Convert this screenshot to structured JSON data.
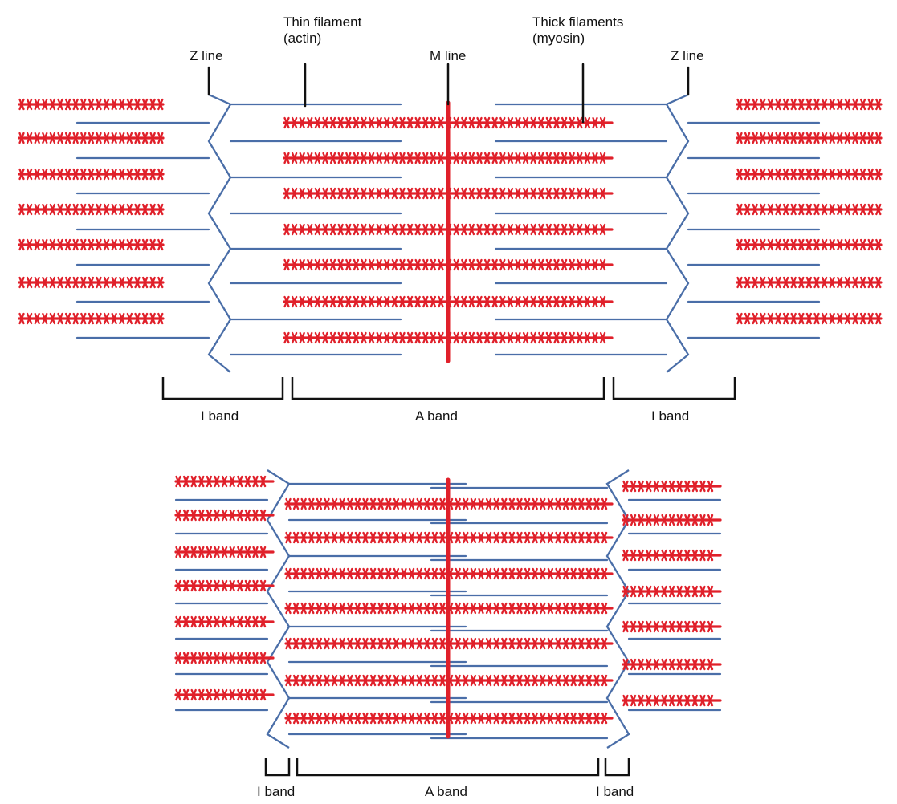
{
  "colors": {
    "thin_filament": "#4a6ea8",
    "thick_filament": "#e0202a",
    "bracket": "#111111"
  },
  "labels": {
    "z_line_left": "Z line",
    "z_line_right": "Z line",
    "thin_filament_line1": "Thin filament",
    "thin_filament_line2": "(actin)",
    "m_line": "M line",
    "thick_filaments_line1": "Thick filaments",
    "thick_filaments_line2": "(myosin)"
  },
  "relaxed": {
    "i_band_left": "I band",
    "a_band": "A band",
    "i_band_right": "I band"
  },
  "contracted": {
    "i_band_left": "I band",
    "a_band": "A band",
    "i_band_right": "I band"
  }
}
